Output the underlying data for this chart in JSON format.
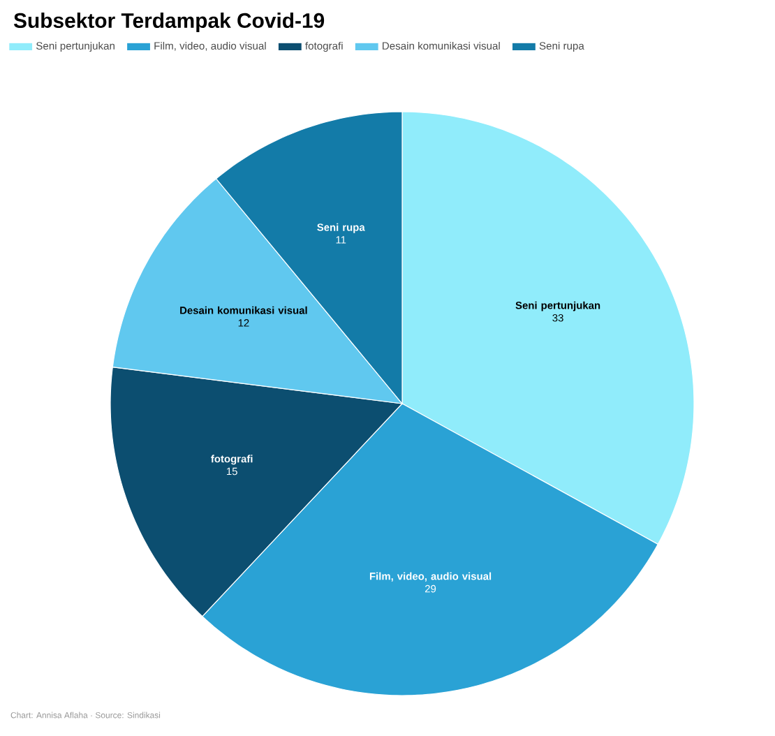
{
  "chart_data": {
    "type": "pie",
    "title": "Subsektor Terdampak Covid-19",
    "categories": [
      "Seni pertunjukan",
      "Film, video, audio visual",
      "fotografi",
      "Desain komunikasi visual",
      "Seni rupa"
    ],
    "values": [
      33,
      29,
      15,
      12,
      11
    ],
    "colors": [
      "#90ecfb",
      "#2aa2d5",
      "#0c4e70",
      "#60c8ef",
      "#137ba8"
    ],
    "data_labels": true,
    "legend": "top",
    "annotations": [
      "Chart: Annisa Aflaha · Source: Sindikasi"
    ]
  }
}
